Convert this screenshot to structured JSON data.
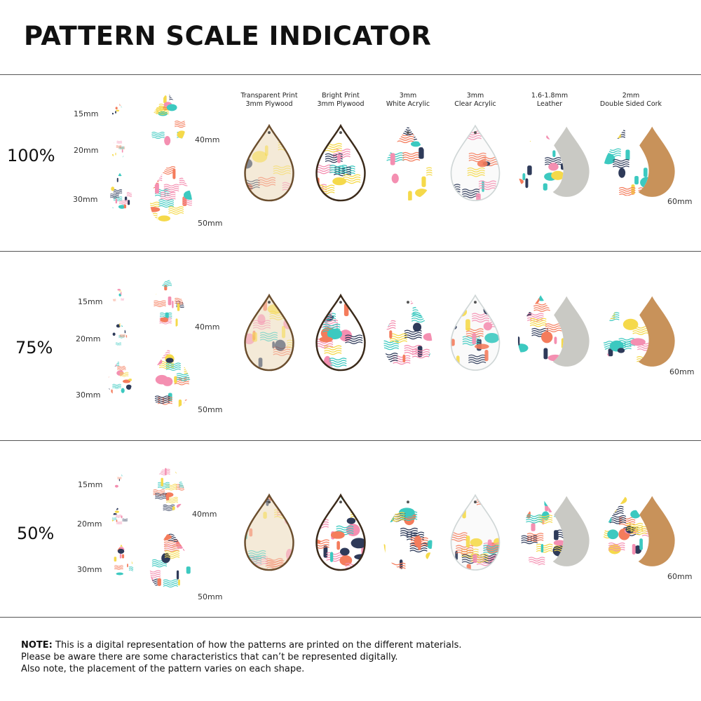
{
  "title": "PATTERN SCALE INDICATOR",
  "materials": [
    {
      "line1": "Transparent Print",
      "line2": "3mm Plywood"
    },
    {
      "line1": "Bright Print",
      "line2": "3mm Plywood"
    },
    {
      "line1": "3mm",
      "line2": "White Acrylic"
    },
    {
      "line1": "3mm",
      "line2": "Clear Acrylic"
    },
    {
      "line1": "1.6-1.8mm",
      "line2": "Leather"
    },
    {
      "line1": "2mm",
      "line2": "Double Sided Cork"
    }
  ],
  "sizes": {
    "s15": "15mm",
    "s20": "20mm",
    "s30": "30mm",
    "s40": "40mm",
    "s50": "50mm",
    "s60": "60mm"
  },
  "sections": [
    {
      "scale": "100%"
    },
    {
      "scale": "75%"
    },
    {
      "scale": "50%"
    }
  ],
  "note": {
    "bold": "NOTE:",
    "line1": "This is a digital representation of how the patterns are printed on the different materials.",
    "line2": "Please be aware there are some characteristics that can’t be represented digitally.",
    "line3": "Also note, the placement of the pattern varies on each shape."
  },
  "colors": {
    "pink": "#f48fb1",
    "coral": "#f47c5c",
    "yellow": "#f5d94a",
    "teal": "#3cc9c0",
    "navy": "#2e3a59",
    "wood": "#c9a176",
    "cork": "#c8925a",
    "leather": "#c9c9c4"
  }
}
